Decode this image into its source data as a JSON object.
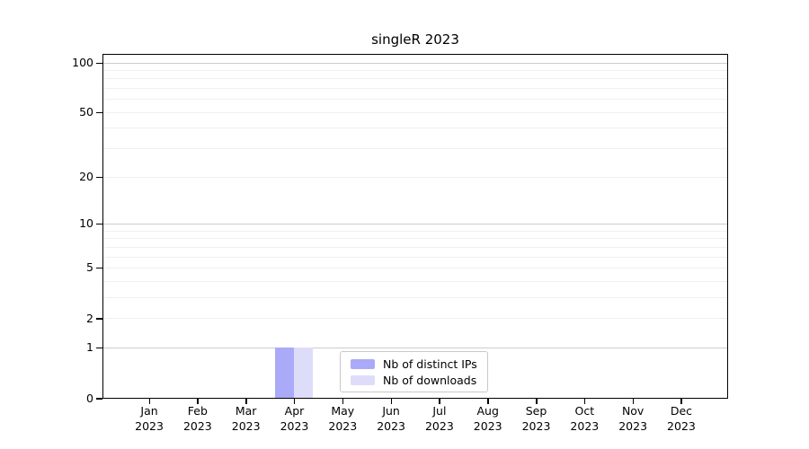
{
  "chart_data": {
    "type": "bar",
    "title": "singleR 2023",
    "categories": [
      {
        "month": "Jan",
        "year": "2023"
      },
      {
        "month": "Feb",
        "year": "2023"
      },
      {
        "month": "Mar",
        "year": "2023"
      },
      {
        "month": "Apr",
        "year": "2023"
      },
      {
        "month": "May",
        "year": "2023"
      },
      {
        "month": "Jun",
        "year": "2023"
      },
      {
        "month": "Jul",
        "year": "2023"
      },
      {
        "month": "Aug",
        "year": "2023"
      },
      {
        "month": "Sep",
        "year": "2023"
      },
      {
        "month": "Oct",
        "year": "2023"
      },
      {
        "month": "Nov",
        "year": "2023"
      },
      {
        "month": "Dec",
        "year": "2023"
      }
    ],
    "series": [
      {
        "name": "Nb of distinct IPs",
        "color": "#aaaaf8",
        "values": [
          0,
          0,
          0,
          1,
          0,
          0,
          0,
          0,
          0,
          0,
          0,
          0
        ]
      },
      {
        "name": "Nb of downloads",
        "color": "#ddddfa",
        "values": [
          0,
          0,
          0,
          1,
          0,
          0,
          0,
          0,
          0,
          0,
          0,
          0
        ]
      }
    ],
    "xlabel": "",
    "ylabel": "",
    "yscale": "log1p",
    "ylim": [
      0,
      101
    ],
    "yticks": [
      0,
      1,
      2,
      5,
      10,
      20,
      50,
      100
    ],
    "major_gridlines": [
      1,
      10,
      100
    ],
    "minor_gridlines": [
      2,
      3,
      4,
      5,
      6,
      7,
      8,
      9,
      20,
      30,
      40,
      50,
      60,
      70,
      80,
      90
    ],
    "grid": true,
    "legend_position": "lower center"
  },
  "colors": {
    "major_grid": "#cccccc",
    "minor_grid": "#f0f0f0",
    "axis": "#000000",
    "background": "#ffffff",
    "legend_border": "#c8c8c8"
  }
}
